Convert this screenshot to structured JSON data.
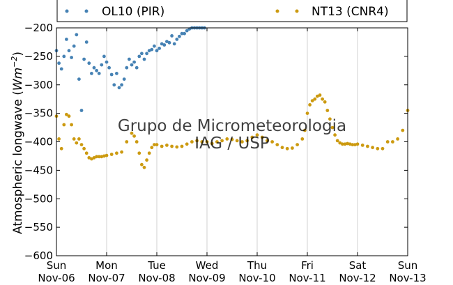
{
  "chart_data": {
    "type": "scatter",
    "title": "",
    "xlabel": "",
    "ylabel": "Atmospheric longwave (Wm⁻²)",
    "ylabel_plain": "Atmospheric longwave (",
    "ylabel_unit": "Wm",
    "ylabel_exp": "−2",
    "ylabel_close": ")",
    "ylim": [
      -600,
      -200
    ],
    "xlim": [
      0,
      7
    ],
    "grid": "vertical",
    "legend_position": "top-outside",
    "yticks": [
      -600,
      -550,
      -500,
      -450,
      -400,
      -350,
      -300,
      -250,
      -200
    ],
    "xticks": [
      {
        "x": 0,
        "day": "Sun",
        "date": "Nov-06"
      },
      {
        "x": 1,
        "day": "Mon",
        "date": "Nov-07"
      },
      {
        "x": 2,
        "day": "Tue",
        "date": "Nov-08"
      },
      {
        "x": 3,
        "day": "Wed",
        "date": "Nov-09"
      },
      {
        "x": 4,
        "day": "Thu",
        "date": "Nov-10"
      },
      {
        "x": 5,
        "day": "Fri",
        "date": "Nov-11"
      },
      {
        "x": 6,
        "day": "Sat",
        "date": "Nov-12"
      },
      {
        "x": 7,
        "day": "Sun",
        "date": "Nov-13"
      }
    ],
    "series": [
      {
        "name": "OL10 (PIR)",
        "color": "#4682b4",
        "x": [
          0.0,
          0.05,
          0.1,
          0.15,
          0.2,
          0.25,
          0.3,
          0.35,
          0.4,
          0.45,
          0.5,
          0.55,
          0.6,
          0.65,
          0.7,
          0.75,
          0.8,
          0.85,
          0.9,
          0.95,
          1.0,
          1.05,
          1.1,
          1.15,
          1.2,
          1.25,
          1.3,
          1.35,
          1.4,
          1.45,
          1.5,
          1.55,
          1.6,
          1.65,
          1.7,
          1.75,
          1.8,
          1.85,
          1.9,
          1.95,
          2.0,
          2.05,
          2.1,
          2.15,
          2.2,
          2.25,
          2.3,
          2.35,
          2.4,
          2.45,
          2.5,
          2.55,
          2.6,
          2.65,
          2.7,
          2.75,
          2.8,
          2.85,
          2.9,
          2.95
        ],
        "y": [
          -240,
          -262,
          -272,
          -250,
          -220,
          -240,
          -252,
          -232,
          -212,
          -290,
          -345,
          -255,
          -225,
          -262,
          -280,
          -270,
          -275,
          -280,
          -265,
          -250,
          -260,
          -270,
          -282,
          -300,
          -280,
          -305,
          -300,
          -290,
          -270,
          -255,
          -265,
          -260,
          -270,
          -250,
          -245,
          -255,
          -245,
          -240,
          -238,
          -232,
          -240,
          -236,
          -228,
          -230,
          -224,
          -226,
          -214,
          -228,
          -220,
          -215,
          -210,
          -210,
          -205,
          -202,
          -200,
          -200,
          -200,
          -200,
          -200,
          -200
        ]
      },
      {
        "name": "NT13 (CNR4)",
        "color": "#cc9a10",
        "x": [
          0.0,
          0.05,
          0.1,
          0.15,
          0.2,
          0.25,
          0.3,
          0.35,
          0.4,
          0.45,
          0.5,
          0.55,
          0.6,
          0.65,
          0.7,
          0.75,
          0.8,
          0.85,
          0.9,
          0.95,
          1.0,
          1.1,
          1.2,
          1.3,
          1.4,
          1.5,
          1.55,
          1.6,
          1.65,
          1.7,
          1.75,
          1.8,
          1.85,
          1.9,
          1.95,
          2.0,
          2.1,
          2.2,
          2.3,
          2.4,
          2.5,
          2.6,
          2.7,
          2.8,
          2.9,
          3.0,
          3.1,
          3.2,
          3.3,
          3.4,
          3.5,
          3.6,
          3.7,
          3.8,
          3.9,
          4.0,
          4.1,
          4.2,
          4.3,
          4.4,
          4.5,
          4.6,
          4.7,
          4.8,
          4.9,
          4.95,
          5.0,
          5.05,
          5.1,
          5.15,
          5.2,
          5.25,
          5.3,
          5.35,
          5.4,
          5.45,
          5.5,
          5.55,
          5.6,
          5.65,
          5.7,
          5.75,
          5.8,
          5.85,
          5.9,
          5.95,
          6.0,
          6.1,
          6.2,
          6.3,
          6.4,
          6.5,
          6.6,
          6.7,
          6.8,
          6.9,
          7.0
        ],
        "y": [
          -355,
          -395,
          -412,
          -370,
          -352,
          -355,
          -370,
          -395,
          -402,
          -395,
          -405,
          -412,
          -420,
          -428,
          -430,
          -428,
          -426,
          -426,
          -426,
          -425,
          -424,
          -422,
          -420,
          -418,
          -400,
          -385,
          -390,
          -400,
          -420,
          -440,
          -445,
          -432,
          -420,
          -410,
          -405,
          -405,
          -408,
          -406,
          -408,
          -409,
          -408,
          -404,
          -400,
          -398,
          -400,
          -400,
          -403,
          -400,
          -398,
          -395,
          -396,
          -398,
          -400,
          -398,
          -392,
          -388,
          -392,
          -398,
          -400,
          -405,
          -410,
          -412,
          -411,
          -405,
          -395,
          -380,
          -350,
          -335,
          -328,
          -325,
          -320,
          -318,
          -325,
          -330,
          -345,
          -360,
          -375,
          -388,
          -398,
          -402,
          -404,
          -404,
          -403,
          -404,
          -405,
          -405,
          -404,
          -406,
          -408,
          -410,
          -412,
          -412,
          -400,
          -400,
          -395,
          -380,
          -345
        ]
      }
    ]
  },
  "watermark": {
    "line1": "Grupo de Micrometeorologia",
    "line2": "IAG / USP"
  }
}
